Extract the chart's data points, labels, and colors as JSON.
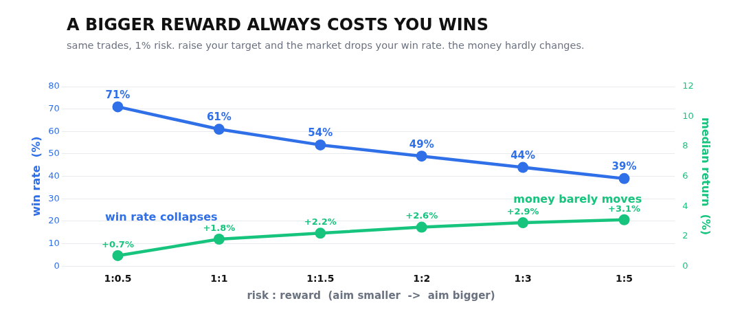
{
  "chart_data": {
    "type": "line",
    "title": "A BIGGER REWARD ALWAYS COSTS YOU WINS",
    "subtitle": "same trades, 1% risk. raise your target and the market drops your win rate. the money hardly changes.",
    "xlabel": "risk : reward  (aim smaller  ->  aim bigger)",
    "ylabel": "win rate  (%)",
    "y2label": "median return  (%)",
    "categories": [
      "1:0.5",
      "1:1",
      "1:1.5",
      "1:2",
      "1:3",
      "1:5"
    ],
    "series": [
      {
        "color": "#2f6fe8",
        "values": [
          71,
          61,
          54,
          49,
          44,
          39
        ],
        "value_labels": [
          "71%",
          "61%",
          "54%",
          "49%",
          "44%",
          "39%"
        ]
      },
      {
        "color": "#17c47e",
        "axis": "y2",
        "values": [
          0.7,
          1.8,
          2.2,
          2.6,
          2.9,
          3.1
        ],
        "value_labels": [
          "+0.7%",
          "+1.8%",
          "+2.2%",
          "+2.6%",
          "+2.9%",
          "+3.1%"
        ]
      }
    ],
    "ylim": [
      0,
      80
    ],
    "yticks": [
      0,
      10,
      20,
      30,
      40,
      50,
      60,
      70,
      80
    ],
    "y2lim": [
      0,
      12
    ],
    "y2ticks": [
      0,
      2,
      4,
      6,
      8,
      10,
      12
    ],
    "annotations": [
      "win rate collapses",
      "money barely moves"
    ],
    "grid": "y",
    "legend": false,
    "marker": "circle",
    "line_style": "solid"
  }
}
